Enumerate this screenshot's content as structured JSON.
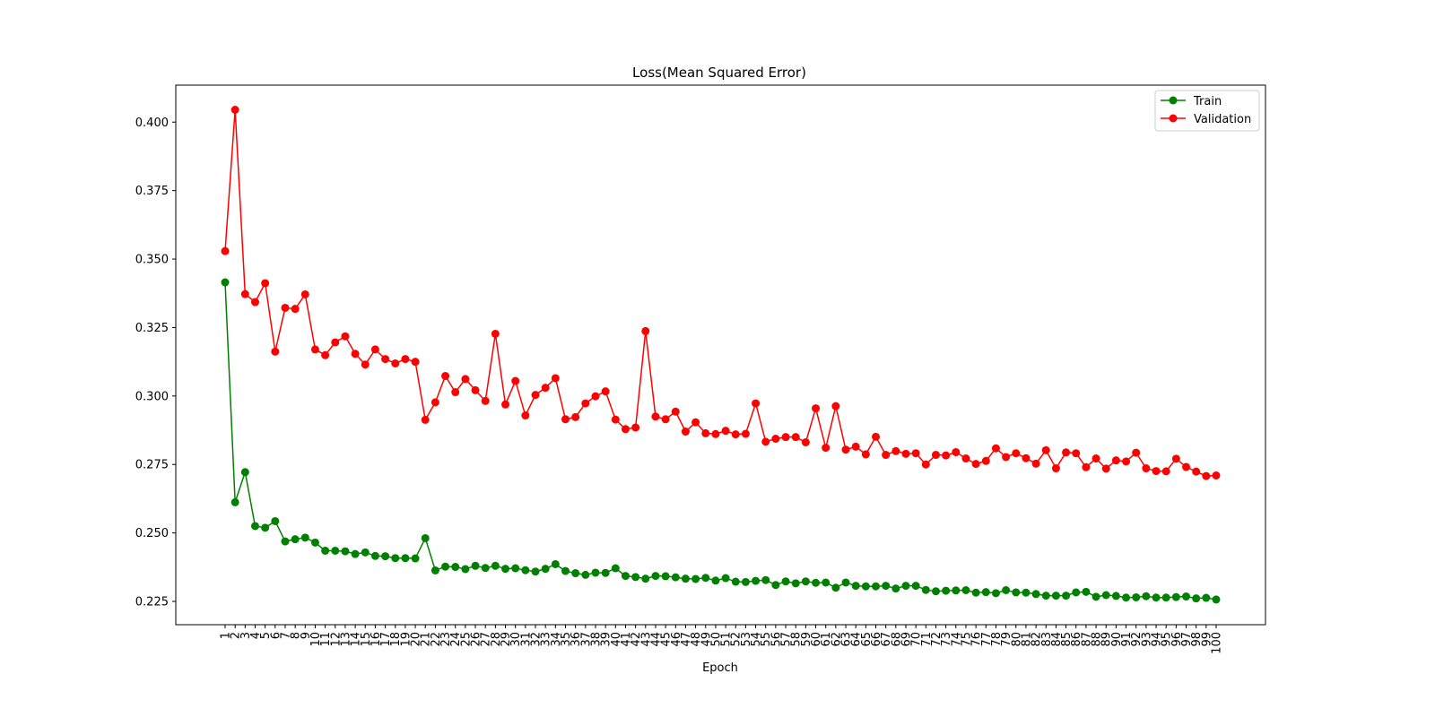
{
  "chart_data": {
    "type": "line",
    "title": "Loss(Mean Squared Error)",
    "xlabel": "Epoch",
    "ylabel": "",
    "ylim": [
      0.2165,
      0.4135
    ],
    "y_ticks": [
      0.225,
      0.25,
      0.275,
      0.3,
      0.325,
      0.35,
      0.375,
      0.4
    ],
    "y_tick_labels": [
      "0.225",
      "0.250",
      "0.275",
      "0.300",
      "0.325",
      "0.350",
      "0.375",
      "0.400"
    ],
    "x": [
      1,
      2,
      3,
      4,
      5,
      6,
      7,
      8,
      9,
      10,
      11,
      12,
      13,
      14,
      15,
      16,
      17,
      18,
      19,
      20,
      21,
      22,
      23,
      24,
      25,
      26,
      27,
      28,
      29,
      30,
      31,
      32,
      33,
      34,
      35,
      36,
      37,
      38,
      39,
      40,
      41,
      42,
      43,
      44,
      45,
      46,
      47,
      48,
      49,
      50,
      51,
      52,
      53,
      54,
      55,
      56,
      57,
      58,
      59,
      60,
      61,
      62,
      63,
      64,
      65,
      66,
      67,
      68,
      69,
      70,
      71,
      72,
      73,
      74,
      75,
      76,
      77,
      78,
      79,
      80,
      81,
      82,
      83,
      84,
      85,
      86,
      87,
      88,
      89,
      90,
      91,
      92,
      93,
      94,
      95,
      96,
      97,
      98,
      99,
      100
    ],
    "grid": false,
    "legend_position": "top-right",
    "series": [
      {
        "name": "Train",
        "color": "#008000",
        "marker": "circle",
        "values": [
          0.3415,
          0.2612,
          0.2722,
          0.2525,
          0.2519,
          0.2543,
          0.2469,
          0.2477,
          0.2483,
          0.2465,
          0.2435,
          0.2435,
          0.2433,
          0.2423,
          0.2429,
          0.2416,
          0.2415,
          0.2408,
          0.2408,
          0.2407,
          0.2481,
          0.2363,
          0.2377,
          0.2376,
          0.2368,
          0.238,
          0.2372,
          0.238,
          0.2369,
          0.2371,
          0.2364,
          0.2359,
          0.2369,
          0.2386,
          0.2361,
          0.2353,
          0.2347,
          0.2355,
          0.2354,
          0.2371,
          0.2343,
          0.2339,
          0.2333,
          0.2343,
          0.2342,
          0.2338,
          0.2333,
          0.2332,
          0.2336,
          0.2326,
          0.2335,
          0.2322,
          0.2321,
          0.2325,
          0.2328,
          0.231,
          0.2323,
          0.2316,
          0.2323,
          0.2318,
          0.2319,
          0.23,
          0.2319,
          0.2307,
          0.2305,
          0.2305,
          0.2307,
          0.2297,
          0.2307,
          0.2307,
          0.2292,
          0.2287,
          0.2289,
          0.229,
          0.2291,
          0.2282,
          0.2284,
          0.228,
          0.2291,
          0.2283,
          0.2282,
          0.2277,
          0.2271,
          0.2271,
          0.2271,
          0.2283,
          0.2285,
          0.2267,
          0.2273,
          0.227,
          0.2264,
          0.2265,
          0.2269,
          0.2264,
          0.2264,
          0.2266,
          0.2268,
          0.2261,
          0.2263,
          0.2257
        ]
      },
      {
        "name": "Validation",
        "color": "#ff0000",
        "marker": "circle",
        "values": [
          0.3529,
          0.4045,
          0.3372,
          0.3343,
          0.3412,
          0.3162,
          0.3322,
          0.3318,
          0.3371,
          0.317,
          0.3149,
          0.3196,
          0.3218,
          0.3154,
          0.3115,
          0.317,
          0.3135,
          0.3119,
          0.3135,
          0.3125,
          0.2913,
          0.2977,
          0.3073,
          0.3014,
          0.3062,
          0.3021,
          0.2982,
          0.3227,
          0.2969,
          0.3055,
          0.2929,
          0.3004,
          0.303,
          0.3065,
          0.2915,
          0.2923,
          0.2973,
          0.2999,
          0.3017,
          0.2914,
          0.2879,
          0.2885,
          0.3237,
          0.2925,
          0.2915,
          0.2943,
          0.287,
          0.2904,
          0.2864,
          0.2861,
          0.2873,
          0.286,
          0.2862,
          0.2973,
          0.2833,
          0.2844,
          0.285,
          0.285,
          0.2831,
          0.2955,
          0.2811,
          0.2963,
          0.2804,
          0.2815,
          0.2787,
          0.2851,
          0.2785,
          0.2799,
          0.2789,
          0.2791,
          0.275,
          0.2785,
          0.2783,
          0.2795,
          0.2772,
          0.2752,
          0.2763,
          0.2809,
          0.2777,
          0.2791,
          0.2773,
          0.2753,
          0.2802,
          0.2736,
          0.2794,
          0.2791,
          0.274,
          0.2772,
          0.2735,
          0.2765,
          0.2761,
          0.2793,
          0.2736,
          0.2726,
          0.2725,
          0.2771,
          0.2741,
          0.2724,
          0.2708,
          0.271
        ]
      }
    ]
  }
}
